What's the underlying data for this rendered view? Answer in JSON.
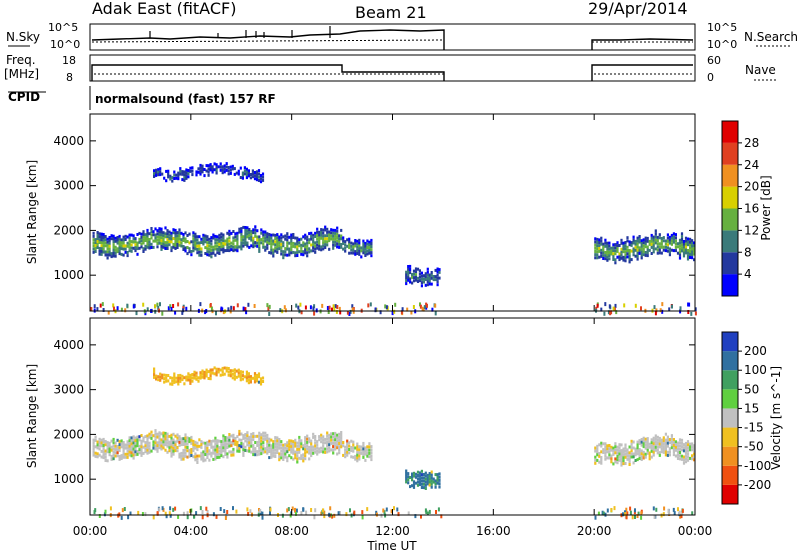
{
  "header": {
    "radar": "Adak East (fitACF)",
    "beam": "Beam 21",
    "date": "29/Apr/2014"
  },
  "noise_panel": {
    "left_label": "N.Sky",
    "right_label": "N.Search",
    "left_ticks": [
      "10^5",
      "10^0"
    ],
    "right_ticks": [
      "10^5",
      "10^0"
    ]
  },
  "freq_panel": {
    "left_label": "Freq.",
    "left_unit": "[MHz]",
    "left_ticks": [
      "18",
      "8"
    ],
    "right_label": "Nave",
    "right_ticks": [
      "60",
      "0"
    ]
  },
  "cpid": {
    "label": "CPID",
    "text": "normalsound (fast) 157 RF"
  },
  "chart_data": [
    {
      "type": "heatmap",
      "name": "power",
      "ylabel": "Slant Range [km]",
      "y_ticks": [
        1000,
        2000,
        3000,
        4000
      ],
      "ylim": [
        200,
        4600
      ],
      "colorbar": {
        "label": "Power [dB]",
        "ticks": [
          4,
          8,
          12,
          16,
          20,
          24,
          28
        ],
        "colors": [
          "#0000ff",
          "#23389e",
          "#3a7a7a",
          "#66b040",
          "#d8d000",
          "#f09020",
          "#e04020",
          "#e00000"
        ]
      },
      "echo_bands": [
        {
          "t_start": 0.1,
          "t_end": 10.0,
          "range_low": 1500,
          "range_high": 2100,
          "power": 12
        },
        {
          "t_start": 2.5,
          "t_end": 6.9,
          "range_low": 3200,
          "range_high": 3550,
          "power": 6
        },
        {
          "t_start": 10.0,
          "t_end": 11.2,
          "range_low": 1500,
          "range_high": 2000,
          "power": 10
        },
        {
          "t_start": 12.5,
          "t_end": 13.9,
          "range_low": 850,
          "range_high": 1350,
          "power": 8
        },
        {
          "t_start": 20.0,
          "t_end": 24.0,
          "range_low": 1400,
          "range_high": 2000,
          "power": 12
        }
      ]
    },
    {
      "type": "heatmap",
      "name": "velocity",
      "ylabel": "Slant Range [km]",
      "xlabel": "Time UT",
      "x_ticks": [
        "00:00",
        "04:00",
        "08:00",
        "12:00",
        "16:00",
        "20:00",
        "00:00"
      ],
      "xlim": [
        0,
        24
      ],
      "y_ticks": [
        1000,
        2000,
        3000,
        4000
      ],
      "ylim": [
        200,
        4600
      ],
      "colorbar": {
        "label": "Velocity [m s^-1]",
        "ticks": [
          200,
          100,
          50,
          15,
          -15,
          -50,
          -100,
          -200
        ],
        "colors": [
          "#2040c0",
          "#3070a0",
          "#40a060",
          "#60d040",
          "#c0c0c0",
          "#f0c020",
          "#f09020",
          "#f05010",
          "#e00000"
        ]
      },
      "echo_bands": [
        {
          "t_start": 0.1,
          "t_end": 10.0,
          "range_low": 1500,
          "range_high": 2100,
          "velocity": 0
        },
        {
          "t_start": 2.5,
          "t_end": 6.9,
          "range_low": 3200,
          "range_high": 3550,
          "velocity": -40
        },
        {
          "t_start": 10.0,
          "t_end": 11.2,
          "range_low": 1500,
          "range_high": 2000,
          "velocity": 0
        },
        {
          "t_start": 12.5,
          "t_end": 13.9,
          "range_low": 850,
          "range_high": 1350,
          "velocity": 80
        },
        {
          "t_start": 20.0,
          "t_end": 24.0,
          "range_low": 1400,
          "range_high": 2000,
          "velocity": 0
        }
      ]
    }
  ]
}
